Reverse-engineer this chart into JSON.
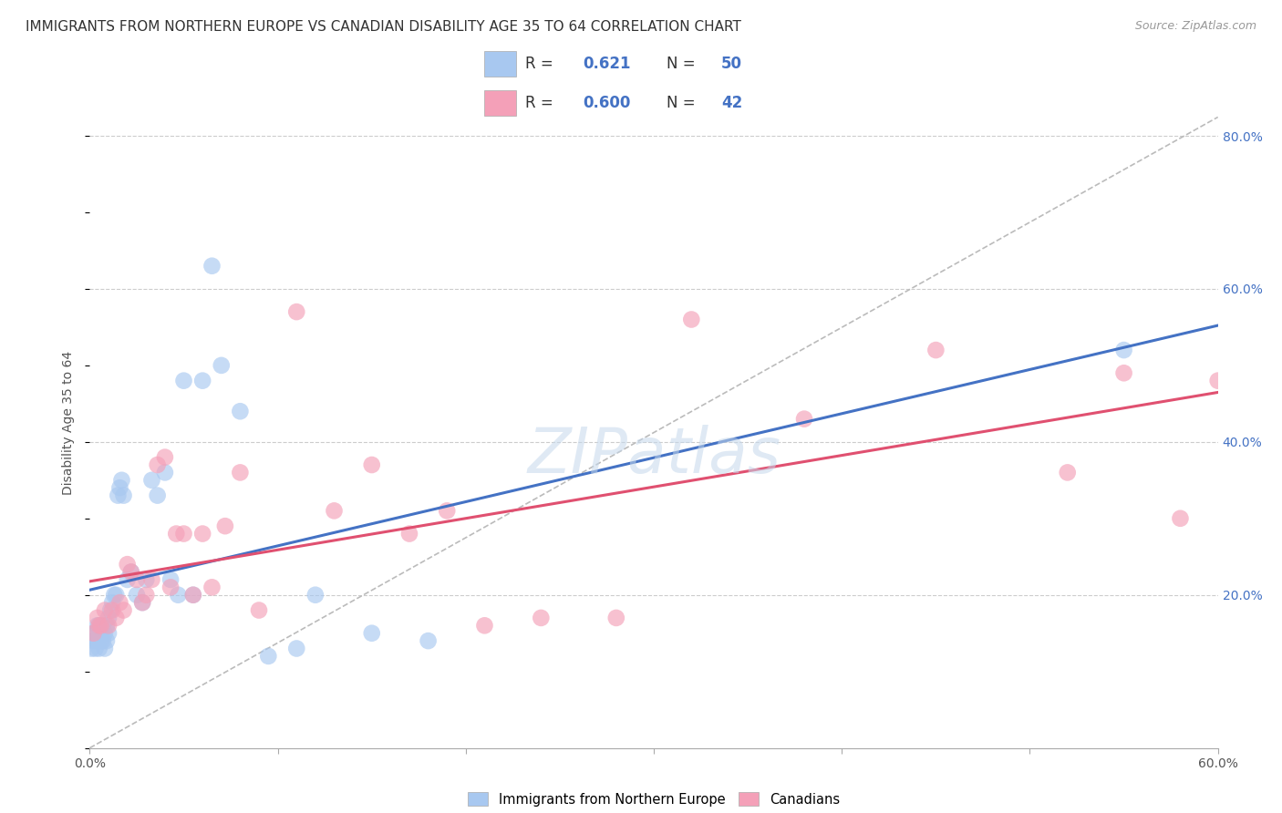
{
  "title": "IMMIGRANTS FROM NORTHERN EUROPE VS CANADIAN DISABILITY AGE 35 TO 64 CORRELATION CHART",
  "source": "Source: ZipAtlas.com",
  "ylabel": "Disability Age 35 to 64",
  "xlim": [
    0.0,
    0.6
  ],
  "ylim": [
    0.0,
    0.85
  ],
  "xticks": [
    0.0,
    0.1,
    0.2,
    0.3,
    0.4,
    0.5,
    0.6
  ],
  "yticks_right": [
    0.0,
    0.2,
    0.4,
    0.6,
    0.8
  ],
  "ytick_right_labels": [
    "",
    "20.0%",
    "40.0%",
    "60.0%",
    "80.0%"
  ],
  "blue_color": "#A8C8F0",
  "pink_color": "#F4A0B8",
  "blue_line_color": "#4472C4",
  "pink_line_color": "#E05070",
  "ref_line_color": "#BBBBBB",
  "bottom_legend_blue": "Immigrants from Northern Europe",
  "bottom_legend_pink": "Canadians",
  "watermark": "ZIPatlas",
  "blue_scatter_x": [
    0.001,
    0.002,
    0.002,
    0.003,
    0.003,
    0.004,
    0.004,
    0.005,
    0.005,
    0.005,
    0.006,
    0.006,
    0.007,
    0.007,
    0.008,
    0.008,
    0.009,
    0.009,
    0.01,
    0.01,
    0.011,
    0.012,
    0.013,
    0.014,
    0.015,
    0.016,
    0.017,
    0.018,
    0.02,
    0.022,
    0.025,
    0.028,
    0.03,
    0.033,
    0.036,
    0.04,
    0.043,
    0.047,
    0.05,
    0.055,
    0.06,
    0.065,
    0.07,
    0.08,
    0.095,
    0.11,
    0.12,
    0.15,
    0.18,
    0.55
  ],
  "blue_scatter_y": [
    0.13,
    0.14,
    0.15,
    0.13,
    0.15,
    0.14,
    0.16,
    0.13,
    0.15,
    0.16,
    0.14,
    0.15,
    0.14,
    0.16,
    0.13,
    0.15,
    0.14,
    0.16,
    0.17,
    0.15,
    0.18,
    0.19,
    0.2,
    0.2,
    0.33,
    0.34,
    0.35,
    0.33,
    0.22,
    0.23,
    0.2,
    0.19,
    0.22,
    0.35,
    0.33,
    0.36,
    0.22,
    0.2,
    0.48,
    0.2,
    0.48,
    0.63,
    0.5,
    0.44,
    0.12,
    0.13,
    0.2,
    0.15,
    0.14,
    0.52
  ],
  "pink_scatter_x": [
    0.002,
    0.004,
    0.005,
    0.006,
    0.008,
    0.01,
    0.012,
    0.014,
    0.016,
    0.018,
    0.02,
    0.022,
    0.025,
    0.028,
    0.03,
    0.033,
    0.036,
    0.04,
    0.043,
    0.046,
    0.05,
    0.055,
    0.06,
    0.065,
    0.072,
    0.08,
    0.09,
    0.11,
    0.13,
    0.15,
    0.17,
    0.19,
    0.21,
    0.24,
    0.28,
    0.32,
    0.38,
    0.45,
    0.52,
    0.55,
    0.58,
    0.6
  ],
  "pink_scatter_y": [
    0.15,
    0.17,
    0.16,
    0.16,
    0.18,
    0.16,
    0.18,
    0.17,
    0.19,
    0.18,
    0.24,
    0.23,
    0.22,
    0.19,
    0.2,
    0.22,
    0.37,
    0.38,
    0.21,
    0.28,
    0.28,
    0.2,
    0.28,
    0.21,
    0.29,
    0.36,
    0.18,
    0.57,
    0.31,
    0.37,
    0.28,
    0.31,
    0.16,
    0.17,
    0.17,
    0.56,
    0.43,
    0.52,
    0.36,
    0.49,
    0.3,
    0.48
  ],
  "title_fontsize": 11,
  "axis_label_fontsize": 10,
  "tick_fontsize": 10,
  "source_fontsize": 9,
  "legend_fontsize": 12
}
